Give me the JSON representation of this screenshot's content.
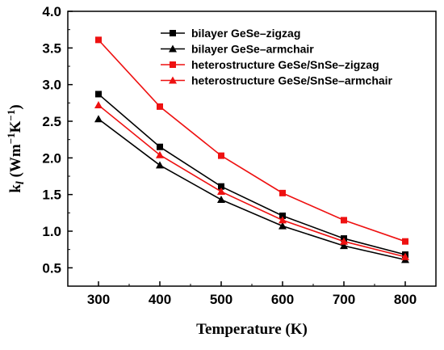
{
  "chart_data": {
    "type": "line",
    "xlabel": "Temperature (K)",
    "ylabel": {
      "base": "k",
      "sub": "l",
      "unit_open": " (Wm",
      "exp1": "−1",
      "mid": "K",
      "exp2": "−1",
      "unit_close": ")"
    },
    "xlim": [
      250,
      850
    ],
    "ylim": [
      0.25,
      4.0
    ],
    "x_ticks": [
      300,
      400,
      500,
      600,
      700,
      800
    ],
    "x_tick_labels": [
      "300",
      "400",
      "500",
      "600",
      "700",
      "800"
    ],
    "y_ticks": [
      0.5,
      1.0,
      1.5,
      2.0,
      2.5,
      3.0,
      3.5,
      4.0
    ],
    "y_tick_labels": [
      "0.5",
      "1.0",
      "1.5",
      "2.0",
      "2.5",
      "3.0",
      "3.5",
      "4.0"
    ],
    "grid": false,
    "legend_position": "top-right",
    "x": [
      300,
      400,
      500,
      600,
      700,
      800
    ],
    "series": [
      {
        "name": "bilayer GeSe–zigzag",
        "values": [
          2.87,
          2.15,
          1.61,
          1.21,
          0.9,
          0.68
        ],
        "color": "#000000",
        "marker": "square"
      },
      {
        "name": "bilayer GeSe–armchair",
        "values": [
          2.53,
          1.9,
          1.43,
          1.07,
          0.8,
          0.61
        ],
        "color": "#000000",
        "marker": "triangle"
      },
      {
        "name": "heterostructure GeSe/SnSe–zigzag",
        "values": [
          3.61,
          2.7,
          2.03,
          1.52,
          1.15,
          0.86
        ],
        "color": "#ee1111",
        "marker": "square"
      },
      {
        "name": "heterostructure GeSe/SnSe–armchair",
        "values": [
          2.72,
          2.04,
          1.54,
          1.15,
          0.86,
          0.65
        ],
        "color": "#ee1111",
        "marker": "triangle"
      }
    ]
  }
}
